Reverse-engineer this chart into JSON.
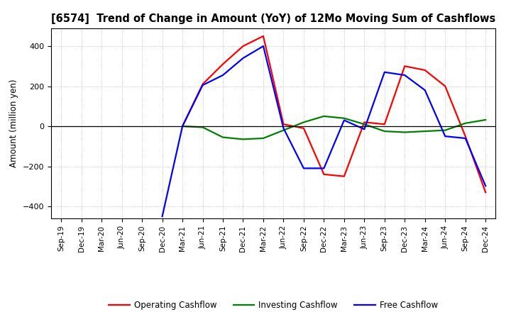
{
  "title": "[6574]  Trend of Change in Amount (YoY) of 12Mo Moving Sum of Cashflows",
  "ylabel": "Amount (million yen)",
  "x_labels": [
    "Sep-19",
    "Dec-19",
    "Mar-20",
    "Jun-20",
    "Sep-20",
    "Dec-20",
    "Mar-21",
    "Jun-21",
    "Sep-21",
    "Dec-21",
    "Mar-22",
    "Jun-22",
    "Sep-22",
    "Dec-22",
    "Mar-23",
    "Jun-23",
    "Sep-23",
    "Dec-23",
    "Mar-24",
    "Jun-24",
    "Sep-24",
    "Dec-24"
  ],
  "operating_x": [
    6,
    7,
    8,
    9,
    10,
    11,
    12,
    13,
    14,
    15,
    16,
    17,
    18,
    19,
    20,
    21
  ],
  "operating_y": [
    0,
    210,
    310,
    400,
    450,
    10,
    -10,
    -240,
    -250,
    20,
    10,
    300,
    280,
    200,
    -50,
    -330
  ],
  "investing_x": [
    6,
    7,
    8,
    9,
    10,
    11,
    12,
    13,
    14,
    15,
    16,
    17,
    18,
    19,
    20,
    21
  ],
  "investing_y": [
    0,
    -5,
    -55,
    -65,
    -60,
    -20,
    20,
    50,
    40,
    10,
    -25,
    -30,
    -25,
    -20,
    15,
    32
  ],
  "free_x": [
    5,
    6,
    7,
    8,
    9,
    10,
    11,
    12,
    13,
    14,
    15,
    16,
    17,
    18,
    19,
    20,
    21
  ],
  "free_y": [
    -450,
    0,
    205,
    255,
    340,
    400,
    -10,
    -210,
    -210,
    30,
    -15,
    270,
    255,
    180,
    -50,
    -60,
    -298
  ],
  "ylim": [
    -460,
    490
  ],
  "yticks": [
    -400,
    -200,
    0,
    200,
    400
  ],
  "operating_color": "#ff0000",
  "investing_color": "#008000",
  "free_color": "#0000ff",
  "bg_color": "#ffffff",
  "grid_color": "#888888",
  "line_width": 1.6
}
